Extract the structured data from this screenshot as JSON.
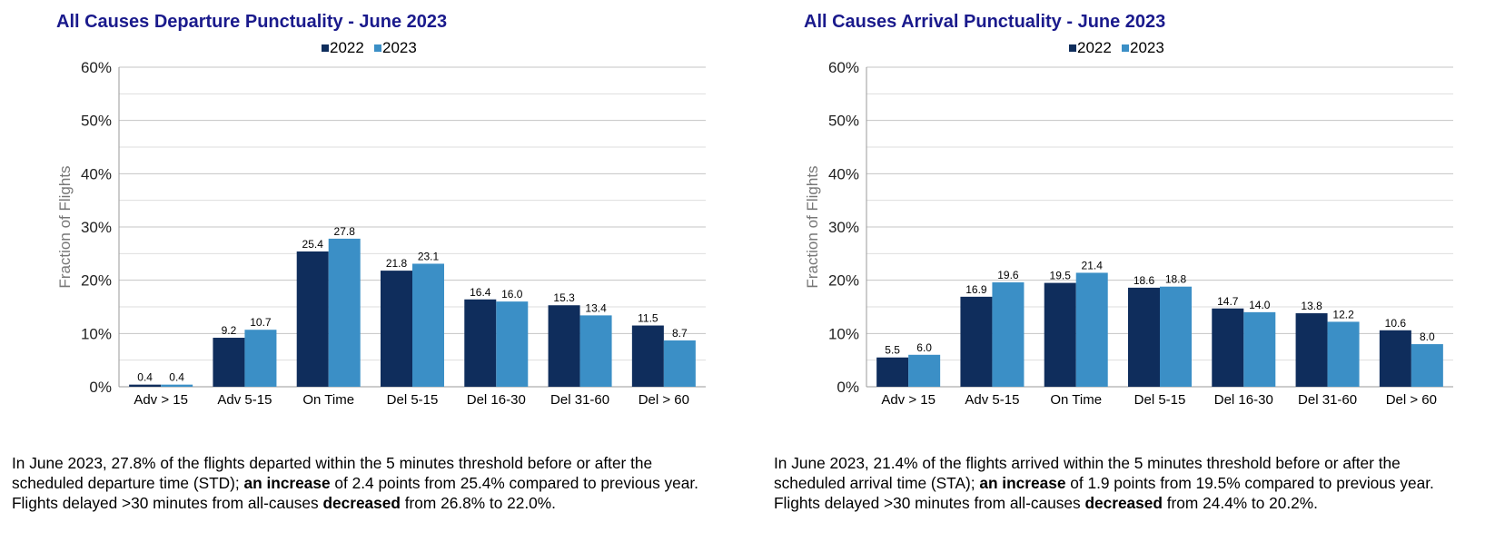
{
  "chart_data": [
    {
      "type": "bar",
      "title": "All Causes Departure Punctuality - June 2023",
      "ylabel": "Fraction of Flights",
      "xlabel": "",
      "ylim": [
        0,
        60
      ],
      "yticks": [
        "0%",
        "10%",
        "20%",
        "30%",
        "40%",
        "50%",
        "60%"
      ],
      "grid": true,
      "legend_position": "top-center",
      "categories": [
        "Adv > 15",
        "Adv 5-15",
        "On Time",
        "Del 5-15",
        "Del 16-30",
        "Del 31-60",
        "Del > 60"
      ],
      "series": [
        {
          "name": "2022",
          "color": "#0f2d5c",
          "values": [
            0.4,
            9.2,
            25.4,
            21.8,
            16.4,
            15.3,
            11.5
          ],
          "labels": [
            "0.4",
            "9.2",
            "25.4",
            "21.8",
            "16.4",
            "15.3",
            "11.5"
          ]
        },
        {
          "name": "2023",
          "color": "#3b8fc6",
          "values": [
            0.4,
            10.7,
            27.8,
            23.1,
            16.0,
            13.4,
            8.7
          ],
          "labels": [
            "0.4",
            "10.7",
            "27.8",
            "23.1",
            "16.0",
            "13.4",
            "8.7"
          ]
        }
      ]
    },
    {
      "type": "bar",
      "title": "All Causes Arrival Punctuality - June 2023",
      "ylabel": "Fraction of Flights",
      "xlabel": "",
      "ylim": [
        0,
        60
      ],
      "yticks": [
        "0%",
        "10%",
        "20%",
        "30%",
        "40%",
        "50%",
        "60%"
      ],
      "grid": true,
      "legend_position": "top-center",
      "categories": [
        "Adv > 15",
        "Adv 5-15",
        "On Time",
        "Del 5-15",
        "Del 16-30",
        "Del 31-60",
        "Del > 60"
      ],
      "series": [
        {
          "name": "2022",
          "color": "#0f2d5c",
          "values": [
            5.5,
            16.9,
            19.5,
            18.6,
            14.7,
            13.8,
            10.6
          ],
          "labels": [
            "5.5",
            "16.9",
            "19.5",
            "18.6",
            "14.7",
            "13.8",
            "10.6"
          ]
        },
        {
          "name": "2023",
          "color": "#3b8fc6",
          "values": [
            6.0,
            19.6,
            21.4,
            18.8,
            14.0,
            12.2,
            8.0
          ],
          "labels": [
            "6.0",
            "19.6",
            "21.4",
            "18.8",
            "14.0",
            "12.2",
            "8.0"
          ]
        }
      ]
    }
  ],
  "captions": [
    {
      "line1": "In June 2023, 27.8% of the flights departed within the 5 minutes threshold before or after the",
      "line2_pre": "scheduled departure time (STD); ",
      "line2_bold": "an increase",
      "line2_post": " of 2.4 points from 25.4% compared to previous year.",
      "line3_pre": "Flights delayed >30 minutes from all-causes ",
      "line3_bold": "decreased",
      "line3_post": " from 26.8% to 22.0%."
    },
    {
      "line1": "In June 2023, 21.4% of the flights arrived within the 5 minutes threshold before or after the",
      "line2_pre": "scheduled arrival time (STA); ",
      "line2_bold": "an increase",
      "line2_post": " of 1.9 points from 19.5% compared to previous year.",
      "line3_pre": "Flights delayed >30 minutes from all-causes ",
      "line3_bold": "decreased",
      "line3_post": " from 24.4% to 20.2%."
    }
  ]
}
